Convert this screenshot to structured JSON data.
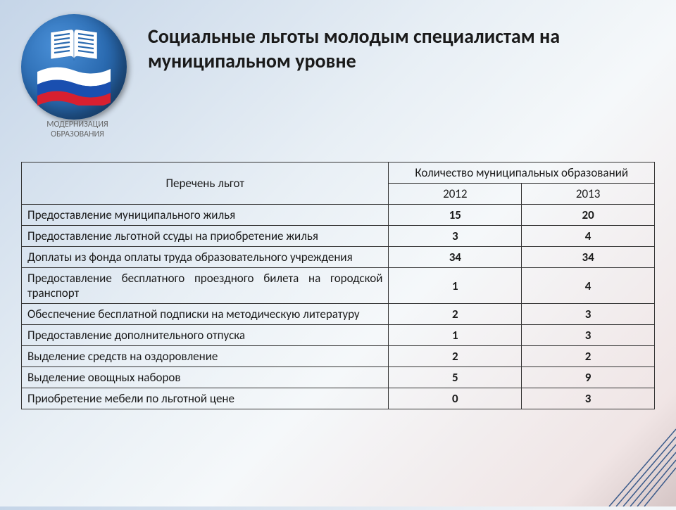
{
  "logo": {
    "line1": "МОДЕРНИЗАЦИЯ",
    "line2": "ОБРАЗОВАНИЯ"
  },
  "title": "Социальные льготы молодым специалистам на муниципальном уровне",
  "table": {
    "header_benefit": "Перечень льгот",
    "header_count": "Количество муниципальных образований",
    "year1": "2012",
    "year2": "2013",
    "rows": [
      {
        "label": "Предоставление муниципального жилья",
        "v1": "15",
        "v2": "20",
        "justify": false
      },
      {
        "label": "Предоставление льготной ссуды на приобретение жилья",
        "v1": "3",
        "v2": "4",
        "justify": false
      },
      {
        "label": "Доплаты из фонда оплаты труда образовательного учреждения",
        "v1": "34",
        "v2": "34",
        "justify": true
      },
      {
        "label": "Предоставление бесплатного проездного билета на городской транспорт",
        "v1": "1",
        "v2": "4",
        "justify": true
      },
      {
        "label": "Обеспечение бесплатной подписки на методическую литературу",
        "v1": "2",
        "v2": "3",
        "justify": true
      },
      {
        "label": "Предоставление дополнительного отпуска",
        "v1": "1",
        "v2": "3",
        "justify": false
      },
      {
        "label": "Выделение средств на оздоровление",
        "v1": "2",
        "v2": "2",
        "justify": false
      },
      {
        "label": "Выделение овощных наборов",
        "v1": "5",
        "v2": "9",
        "justify": false
      },
      {
        "label": "Приобретение мебели по льготной цене",
        "v1": "0",
        "v2": "3",
        "justify": false
      }
    ]
  },
  "styling": {
    "title_fontsize": 28,
    "title_color": "#1a1a1a",
    "cell_fontsize": 17,
    "border_color": "#333333",
    "bg_gradient": [
      "#c5d5e8",
      "#e8eff5",
      "#f5f8fa",
      "#f0e5e5",
      "#d5c5c5"
    ],
    "logo_gradient": [
      "#4a90d8",
      "#2a6ab0",
      "#1a4a80"
    ],
    "flag_colors": {
      "white": "#ffffff",
      "blue": "#1a4fb0",
      "red": "#d82030"
    },
    "corner_line_color": "#3a5a8a"
  }
}
